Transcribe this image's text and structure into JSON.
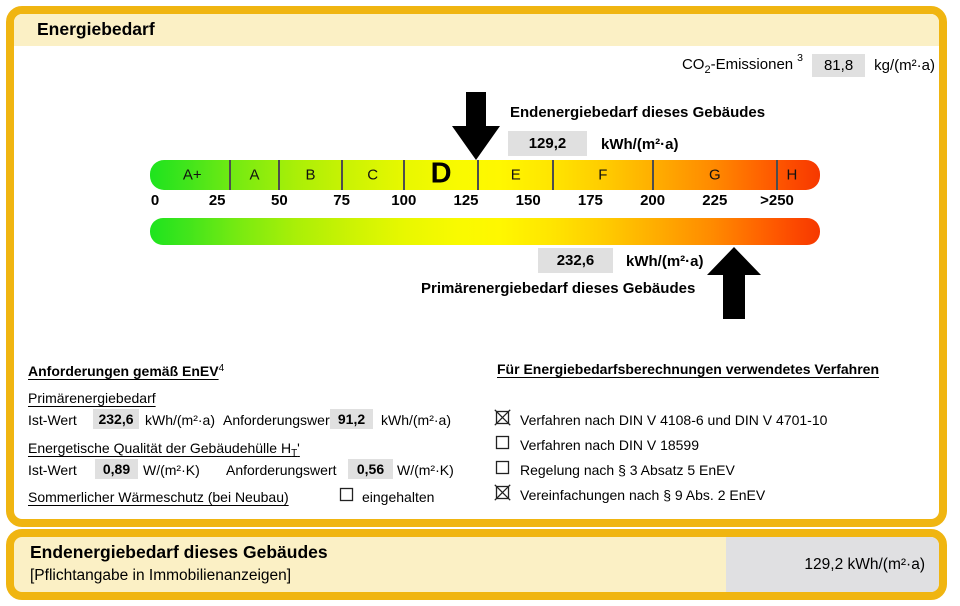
{
  "header": {
    "title": "Energiebedarf"
  },
  "co2": {
    "label_pre": "CO",
    "label_sub": "2",
    "label_post": "-Emissionen",
    "footnote": "3",
    "value": "81,8",
    "unit": "kg/(m²·a)"
  },
  "end_energy": {
    "title": "Endenergiebedarf dieses Gebäudes",
    "value": "129,2",
    "unit": "kWh/(m²·a)"
  },
  "primary_energy": {
    "title": "Primärenergiebedarf dieses Gebäudes",
    "value": "232,6",
    "unit": "kWh/(m²·a)"
  },
  "scale": {
    "current_class": "D",
    "end_energy_value": 129.2,
    "primary_energy_value": 232.6,
    "classes": [
      {
        "label": "A+",
        "from": 0,
        "to": 30
      },
      {
        "label": "A",
        "from": 30,
        "to": 50
      },
      {
        "label": "B",
        "from": 50,
        "to": 75
      },
      {
        "label": "C",
        "from": 75,
        "to": 100
      },
      {
        "label": "D",
        "from": 100,
        "to": 130
      },
      {
        "label": "E",
        "from": 130,
        "to": 160
      },
      {
        "label": "F",
        "from": 160,
        "to": 200
      },
      {
        "label": "G",
        "from": 200,
        "to": 250
      },
      {
        "label": "H",
        "from": 250,
        "to": null
      }
    ],
    "ticks": [
      {
        "label": "0",
        "value": 0
      },
      {
        "label": "25",
        "value": 25
      },
      {
        "label": "50",
        "value": 50
      },
      {
        "label": "75",
        "value": 75
      },
      {
        "label": "100",
        "value": 100
      },
      {
        "label": "125",
        "value": 125
      },
      {
        "label": "150",
        "value": 150
      },
      {
        "label": "175",
        "value": 175
      },
      {
        "label": "200",
        "value": 200
      },
      {
        "label": "225",
        "value": 225
      },
      {
        "label": ">250",
        "value": 250
      }
    ]
  },
  "requirements": {
    "title": "Anforderungen gemäß EnEV",
    "footnote": "4",
    "primary": {
      "heading": "Primärenergiebedarf",
      "ist_label": "Ist-Wert",
      "ist_value": "232,6",
      "ist_unit": "kWh/(m²·a)",
      "req_label": "Anforderungswert",
      "req_value": "91,2",
      "req_unit": "kWh/(m²·a)"
    },
    "envelope": {
      "heading_text": "Energetische Qualität der Gebäudehülle H",
      "heading_sub": "T",
      "heading_apostrophe": "'",
      "ist_label": "Ist-Wert",
      "ist_value": "0,89",
      "ist_unit": "W/(m²·K)",
      "req_label": "Anforderungswert",
      "req_value": "0,56",
      "req_unit": "W/(m²·K)"
    },
    "summer": {
      "heading": "Sommerlicher Wärmeschutz (bei Neubau)",
      "label": "eingehalten",
      "checked": false
    }
  },
  "methods": {
    "title": "Für Energiebedarfsberechnungen verwendetes Verfahren",
    "items": [
      {
        "label": "Verfahren nach DIN V 4108-6 und DIN V 4701-10",
        "checked": true
      },
      {
        "label": "Verfahren nach DIN V 18599",
        "checked": false
      },
      {
        "label": "Regelung nach § 3 Absatz 5 EnEV",
        "checked": false
      },
      {
        "label": "Vereinfachungen nach § 9 Abs. 2 EnEV",
        "checked": true
      }
    ]
  },
  "footer": {
    "title": "Endenergiebedarf dieses Gebäudes",
    "subtitle": "[Pflichtangabe in Immobilienanzeigen]",
    "value": "129,2 kWh/(m²·a)"
  },
  "colors": {
    "gold_border": "#F0B511",
    "cream_background": "#FBF0C5",
    "value_box_gray": "#E0E0E0",
    "scale_green": "#1EE41E",
    "scale_yellow": "#FFF800",
    "scale_red": "#F63800"
  }
}
